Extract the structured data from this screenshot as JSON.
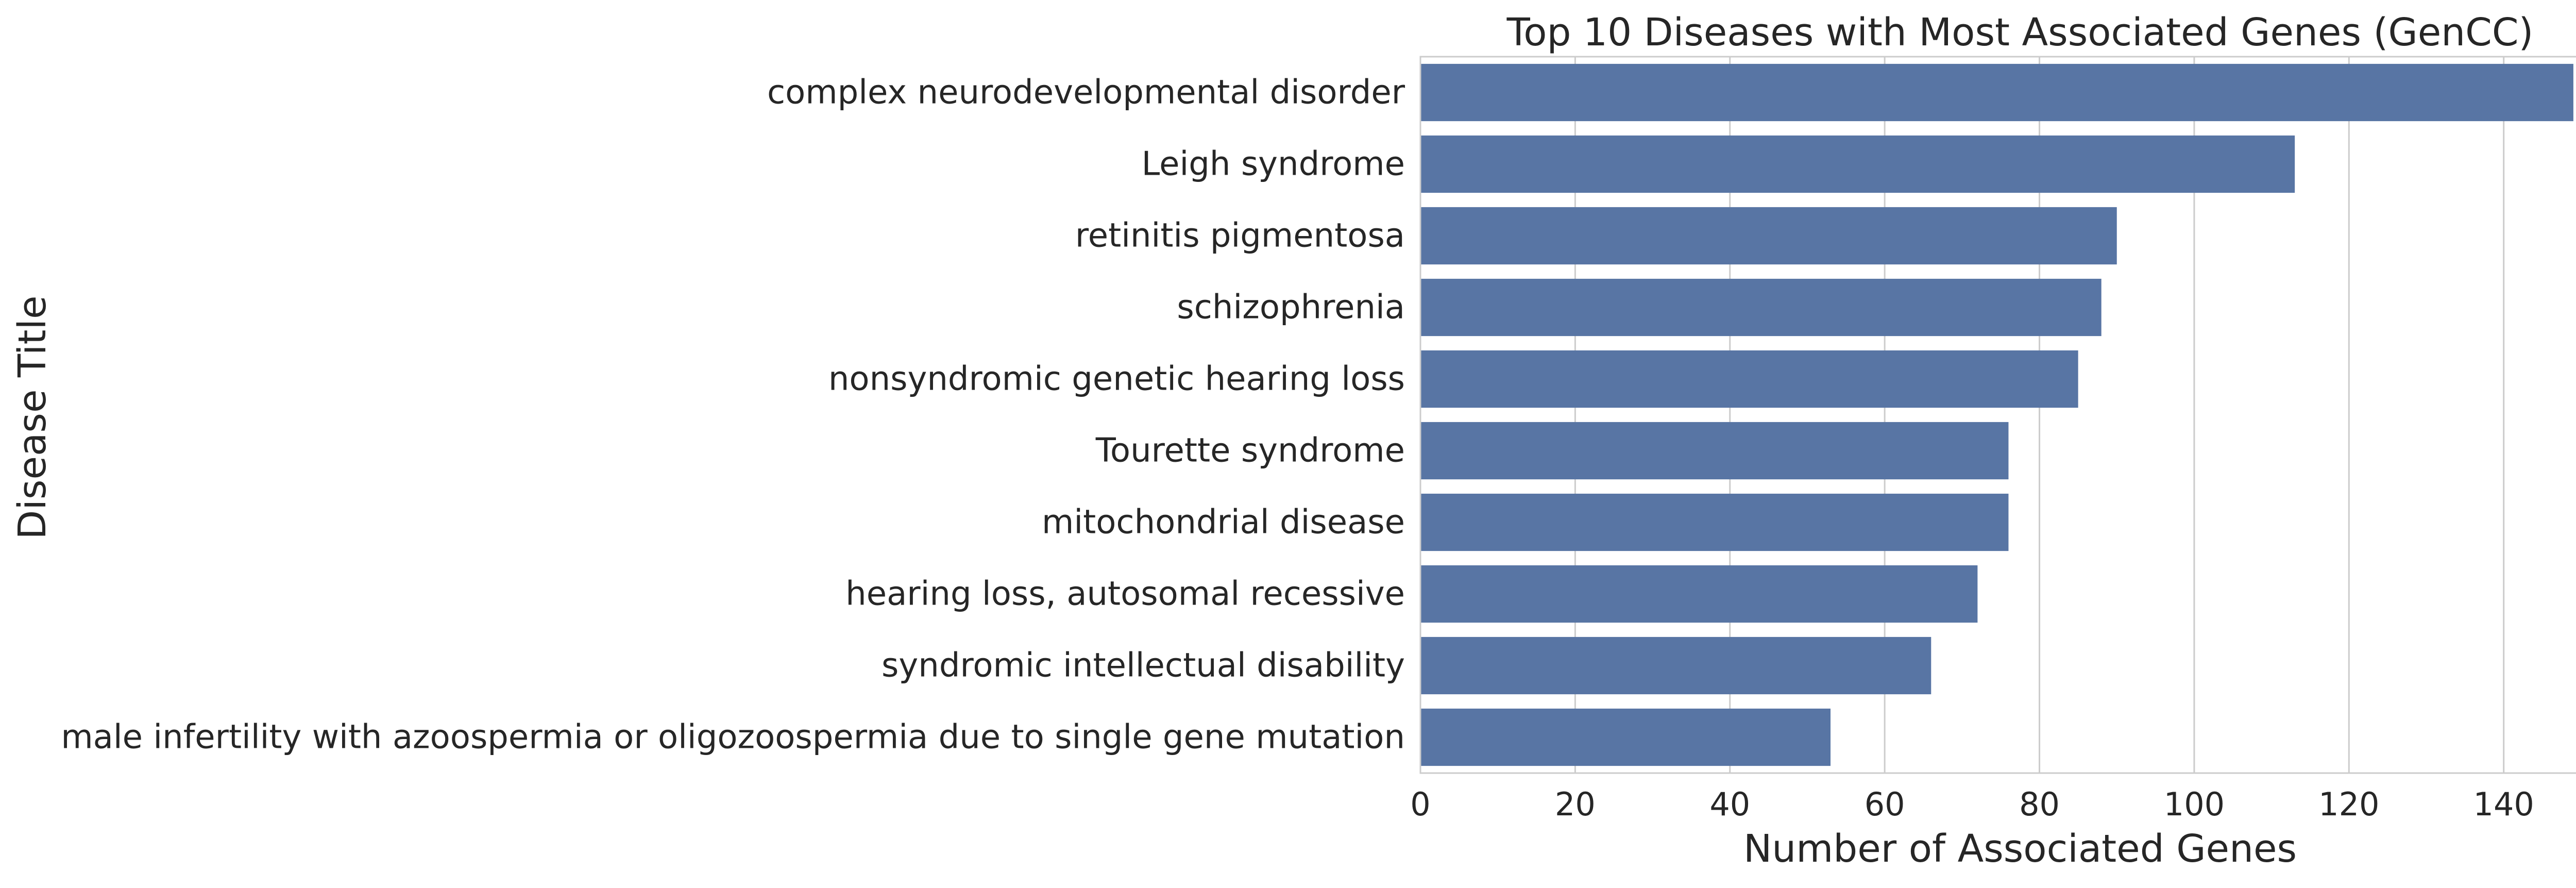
{
  "chart_data": {
    "type": "bar",
    "orientation": "horizontal",
    "title": "Top 10 Diseases with Most Associated Genes (GenCC)",
    "xlabel": "Number of Associated Genes",
    "ylabel": "Disease Title",
    "xlim": [
      0,
      155
    ],
    "xticks": [
      0,
      20,
      40,
      60,
      80,
      100,
      120,
      140
    ],
    "grid": "vertical",
    "bar_color": "#5875a4",
    "categories": [
      "complex neurodevelopmental disorder",
      "Leigh syndrome",
      "retinitis pigmentosa",
      "schizophrenia",
      "nonsyndromic genetic hearing loss",
      "Tourette syndrome",
      "mitochondrial disease",
      "hearing loss, autosomal recessive",
      "syndromic intellectual disability",
      "male infertility with azoospermia or oligozoospermia due to single gene mutation"
    ],
    "values": [
      149,
      113,
      90,
      88,
      85,
      76,
      76,
      72,
      66,
      53
    ]
  }
}
